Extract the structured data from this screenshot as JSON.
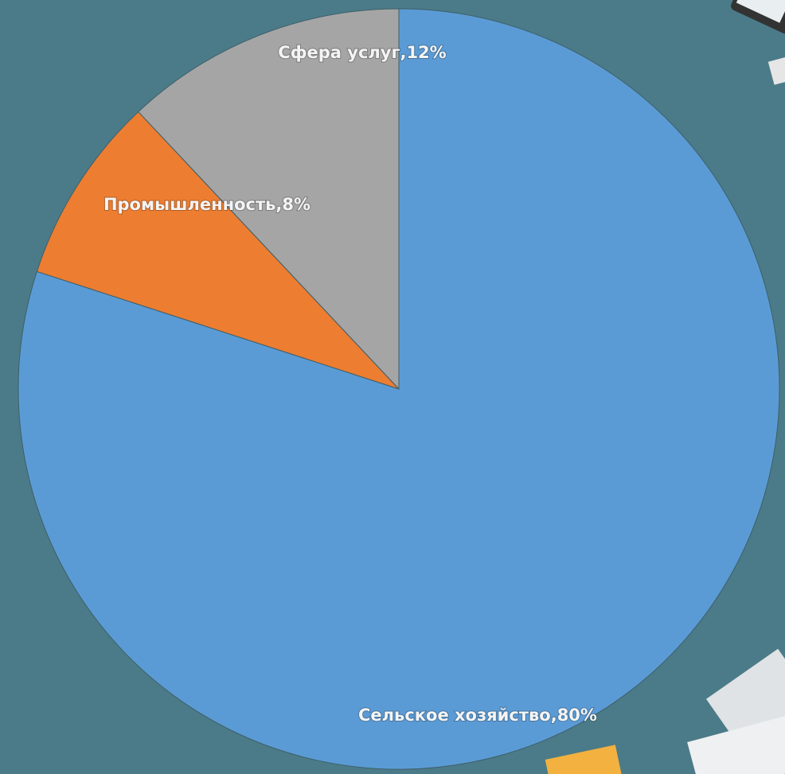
{
  "chart_data": {
    "type": "pie",
    "values": [
      80,
      8,
      12
    ],
    "value_labels": [
      "Сельское хозяйство,80%",
      "Промышленность,8%",
      "Сфера услуг,12%"
    ],
    "colors": [
      "#5b9bd5",
      "#ed7d31",
      "#a5a5a5"
    ]
  }
}
